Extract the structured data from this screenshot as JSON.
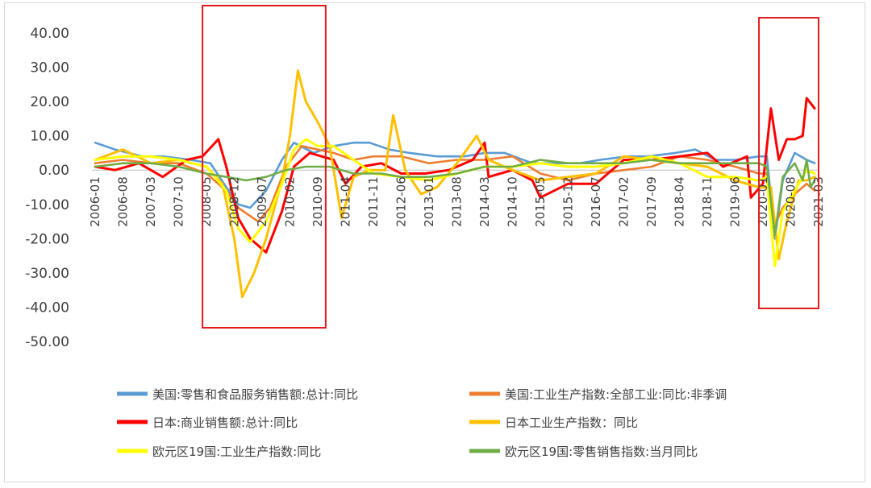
{
  "chart_data": {
    "type": "line",
    "title": "",
    "xlabel": "",
    "ylabel": "",
    "ylim": [
      -50,
      40
    ],
    "yticks": [
      "40.00",
      "30.00",
      "20.00",
      "10.00",
      "0.00",
      "-10.00",
      "-20.00",
      "-30.00",
      "-40.00",
      "-50.00"
    ],
    "xticks": [
      "2006-01",
      "2006-08",
      "2007-03",
      "2007-10",
      "2008-05",
      "2008-12",
      "2009-07",
      "2010-02",
      "2010-09",
      "2011-04",
      "2011-11",
      "2012-06",
      "2013-01",
      "2013-08",
      "2014-03",
      "2014-10",
      "2015-05",
      "2015-12",
      "2016-07",
      "2017-02",
      "2017-09",
      "2018-04",
      "2018-11",
      "2019-06",
      "2020-01",
      "2020-08",
      "2021-03"
    ],
    "legend_position": "bottom",
    "highlight_boxes": [
      {
        "from": "2008-04",
        "to": "2010-11"
      },
      {
        "from": "2019-12",
        "to": "2021-03"
      }
    ],
    "series": [
      {
        "name": "美国:零售和食品服务销售额:总计:同比",
        "color": "#5b9bd5",
        "points": [
          [
            "2006-01",
            8
          ],
          [
            "2006-06",
            6
          ],
          [
            "2007-01",
            4
          ],
          [
            "2007-06",
            4
          ],
          [
            "2008-01",
            3
          ],
          [
            "2008-06",
            2
          ],
          [
            "2008-10",
            -5
          ],
          [
            "2009-01",
            -10
          ],
          [
            "2009-04",
            -11
          ],
          [
            "2009-08",
            -6
          ],
          [
            "2009-12",
            3
          ],
          [
            "2010-03",
            8
          ],
          [
            "2010-08",
            5
          ],
          [
            "2011-01",
            7
          ],
          [
            "2011-06",
            8
          ],
          [
            "2011-10",
            8
          ],
          [
            "2012-03",
            6
          ],
          [
            "2012-08",
            5
          ],
          [
            "2013-03",
            4
          ],
          [
            "2013-10",
            4
          ],
          [
            "2014-03",
            5
          ],
          [
            "2014-08",
            5
          ],
          [
            "2015-03",
            2
          ],
          [
            "2015-10",
            2
          ],
          [
            "2016-03",
            2
          ],
          [
            "2016-08",
            3
          ],
          [
            "2017-03",
            4
          ],
          [
            "2017-08",
            4
          ],
          [
            "2018-03",
            5
          ],
          [
            "2018-08",
            6
          ],
          [
            "2019-01",
            3
          ],
          [
            "2019-06",
            3
          ],
          [
            "2019-12",
            4
          ],
          [
            "2020-02",
            4
          ],
          [
            "2020-04",
            -20
          ],
          [
            "2020-06",
            -3
          ],
          [
            "2020-09",
            5
          ],
          [
            "2020-12",
            3
          ],
          [
            "2021-02",
            2
          ]
        ]
      },
      {
        "name": "美国:工业生产指数:全部工业:同比:非季调",
        "color": "#ed7d31",
        "points": [
          [
            "2006-01",
            2
          ],
          [
            "2006-08",
            3
          ],
          [
            "2007-03",
            2
          ],
          [
            "2007-10",
            2
          ],
          [
            "2008-05",
            -1
          ],
          [
            "2008-10",
            -6
          ],
          [
            "2009-01",
            -11
          ],
          [
            "2009-06",
            -15
          ],
          [
            "2009-09",
            -11
          ],
          [
            "2010-01",
            1
          ],
          [
            "2010-05",
            7
          ],
          [
            "2010-09",
            6
          ],
          [
            "2011-01",
            5
          ],
          [
            "2011-06",
            3
          ],
          [
            "2011-11",
            4
          ],
          [
            "2012-06",
            4
          ],
          [
            "2013-01",
            2
          ],
          [
            "2013-08",
            3
          ],
          [
            "2014-03",
            3
          ],
          [
            "2014-10",
            4
          ],
          [
            "2015-05",
            -1
          ],
          [
            "2015-12",
            -3
          ],
          [
            "2016-07",
            -1
          ],
          [
            "2017-02",
            0
          ],
          [
            "2017-09",
            1
          ],
          [
            "2018-04",
            4
          ],
          [
            "2018-11",
            3
          ],
          [
            "2019-06",
            1
          ],
          [
            "2019-12",
            -1
          ],
          [
            "2020-02",
            -1
          ],
          [
            "2020-04",
            -16
          ],
          [
            "2020-06",
            -11
          ],
          [
            "2020-09",
            -7
          ],
          [
            "2020-12",
            -4
          ],
          [
            "2021-02",
            -6
          ]
        ]
      },
      {
        "name": "日本:商业销售额:总计:同比",
        "color": "#ff0000",
        "points": [
          [
            "2006-01",
            1
          ],
          [
            "2006-06",
            0
          ],
          [
            "2006-12",
            2
          ],
          [
            "2007-06",
            -2
          ],
          [
            "2007-12",
            3
          ],
          [
            "2008-04",
            4
          ],
          [
            "2008-08",
            9
          ],
          [
            "2008-10",
            1
          ],
          [
            "2009-01",
            -14
          ],
          [
            "2009-04",
            -20
          ],
          [
            "2009-08",
            -24
          ],
          [
            "2009-12",
            -12
          ],
          [
            "2010-03",
            1
          ],
          [
            "2010-07",
            5
          ],
          [
            "2010-10",
            4
          ],
          [
            "2011-01",
            3
          ],
          [
            "2011-04",
            -4
          ],
          [
            "2011-08",
            1
          ],
          [
            "2012-01",
            2
          ],
          [
            "2012-06",
            -1
          ],
          [
            "2012-12",
            -1
          ],
          [
            "2013-06",
            0
          ],
          [
            "2013-12",
            3
          ],
          [
            "2014-03",
            8
          ],
          [
            "2014-04",
            -2
          ],
          [
            "2014-10",
            0
          ],
          [
            "2015-03",
            -3
          ],
          [
            "2015-05",
            -8
          ],
          [
            "2015-12",
            -4
          ],
          [
            "2016-07",
            -4
          ],
          [
            "2017-02",
            3
          ],
          [
            "2017-09",
            3
          ],
          [
            "2018-04",
            4
          ],
          [
            "2018-11",
            5
          ],
          [
            "2019-03",
            1
          ],
          [
            "2019-09",
            4
          ],
          [
            "2019-10",
            -8
          ],
          [
            "2020-01",
            -4
          ],
          [
            "2020-03",
            18
          ],
          [
            "2020-05",
            3
          ],
          [
            "2020-07",
            9
          ],
          [
            "2020-09",
            9
          ],
          [
            "2020-11",
            10
          ],
          [
            "2020-12",
            21
          ],
          [
            "2021-02",
            18
          ]
        ]
      },
      {
        "name": "日本工业生产指数：同比",
        "color": "#ffc000",
        "points": [
          [
            "2006-01",
            3
          ],
          [
            "2006-08",
            6
          ],
          [
            "2007-03",
            2
          ],
          [
            "2007-10",
            3
          ],
          [
            "2008-05",
            1
          ],
          [
            "2008-09",
            -4
          ],
          [
            "2008-12",
            -20
          ],
          [
            "2009-02",
            -37
          ],
          [
            "2009-05",
            -30
          ],
          [
            "2009-08",
            -20
          ],
          [
            "2009-12",
            -3
          ],
          [
            "2010-02",
            10
          ],
          [
            "2010-04",
            29
          ],
          [
            "2010-06",
            20
          ],
          [
            "2010-09",
            14
          ],
          [
            "2010-12",
            7
          ],
          [
            "2011-03",
            -14
          ],
          [
            "2011-06",
            -2
          ],
          [
            "2011-10",
            0
          ],
          [
            "2012-02",
            0
          ],
          [
            "2012-04",
            16
          ],
          [
            "2012-07",
            0
          ],
          [
            "2012-11",
            -7
          ],
          [
            "2013-03",
            -5
          ],
          [
            "2013-08",
            2
          ],
          [
            "2014-01",
            10
          ],
          [
            "2014-04",
            3
          ],
          [
            "2014-10",
            0
          ],
          [
            "2015-05",
            -3
          ],
          [
            "2015-12",
            -2
          ],
          [
            "2016-07",
            -1
          ],
          [
            "2017-02",
            4
          ],
          [
            "2017-09",
            3
          ],
          [
            "2018-04",
            2
          ],
          [
            "2018-11",
            1
          ],
          [
            "2019-06",
            -3
          ],
          [
            "2019-12",
            -5
          ],
          [
            "2020-03",
            -5
          ],
          [
            "2020-05",
            -26
          ],
          [
            "2020-07",
            -15
          ],
          [
            "2020-10",
            -3
          ],
          [
            "2020-12",
            -3
          ],
          [
            "2021-02",
            -2
          ]
        ]
      },
      {
        "name": "欧元区19国:工业生产指数:同比",
        "color": "#ffff00",
        "points": [
          [
            "2006-01",
            3
          ],
          [
            "2006-08",
            4
          ],
          [
            "2007-03",
            4
          ],
          [
            "2007-10",
            3
          ],
          [
            "2008-05",
            1
          ],
          [
            "2008-10",
            -6
          ],
          [
            "2009-01",
            -17
          ],
          [
            "2009-04",
            -21
          ],
          [
            "2009-08",
            -15
          ],
          [
            "2009-12",
            -4
          ],
          [
            "2010-03",
            6
          ],
          [
            "2010-06",
            9
          ],
          [
            "2010-09",
            7
          ],
          [
            "2011-01",
            7
          ],
          [
            "2011-06",
            3
          ],
          [
            "2011-11",
            -1
          ],
          [
            "2012-06",
            -2
          ],
          [
            "2013-01",
            -3
          ],
          [
            "2013-08",
            -1
          ],
          [
            "2014-03",
            1
          ],
          [
            "2014-10",
            1
          ],
          [
            "2015-05",
            2
          ],
          [
            "2015-12",
            1
          ],
          [
            "2016-07",
            1
          ],
          [
            "2017-02",
            2
          ],
          [
            "2017-09",
            4
          ],
          [
            "2018-04",
            2
          ],
          [
            "2018-11",
            -2
          ],
          [
            "2019-06",
            -2
          ],
          [
            "2019-12",
            -3
          ],
          [
            "2020-02",
            -2
          ],
          [
            "2020-04",
            -28
          ],
          [
            "2020-06",
            -12
          ],
          [
            "2020-09",
            -6
          ],
          [
            "2020-12",
            0
          ],
          [
            "2021-02",
            -1
          ]
        ]
      },
      {
        "name": "欧元区19国:零售销售指数:当月同比",
        "color": "#70ad47",
        "points": [
          [
            "2006-01",
            1
          ],
          [
            "2006-08",
            2
          ],
          [
            "2007-03",
            2
          ],
          [
            "2007-10",
            1
          ],
          [
            "2008-05",
            -1
          ],
          [
            "2008-10",
            -2
          ],
          [
            "2009-03",
            -3
          ],
          [
            "2009-08",
            -2
          ],
          [
            "2010-01",
            0
          ],
          [
            "2010-06",
            1
          ],
          [
            "2010-12",
            1
          ],
          [
            "2011-06",
            -1
          ],
          [
            "2012-01",
            -1
          ],
          [
            "2012-06",
            -2
          ],
          [
            "2013-01",
            -2
          ],
          [
            "2013-08",
            -1
          ],
          [
            "2014-03",
            1
          ],
          [
            "2014-10",
            1
          ],
          [
            "2015-05",
            3
          ],
          [
            "2015-12",
            2
          ],
          [
            "2016-07",
            2
          ],
          [
            "2017-02",
            2
          ],
          [
            "2017-09",
            3
          ],
          [
            "2018-04",
            2
          ],
          [
            "2018-11",
            2
          ],
          [
            "2019-06",
            2
          ],
          [
            "2019-12",
            2
          ],
          [
            "2020-02",
            1
          ],
          [
            "2020-04",
            -19
          ],
          [
            "2020-06",
            -2
          ],
          [
            "2020-09",
            2
          ],
          [
            "2020-11",
            -3
          ],
          [
            "2020-12",
            3
          ],
          [
            "2021-01",
            -5
          ],
          [
            "2021-02",
            -3
          ]
        ]
      }
    ]
  }
}
